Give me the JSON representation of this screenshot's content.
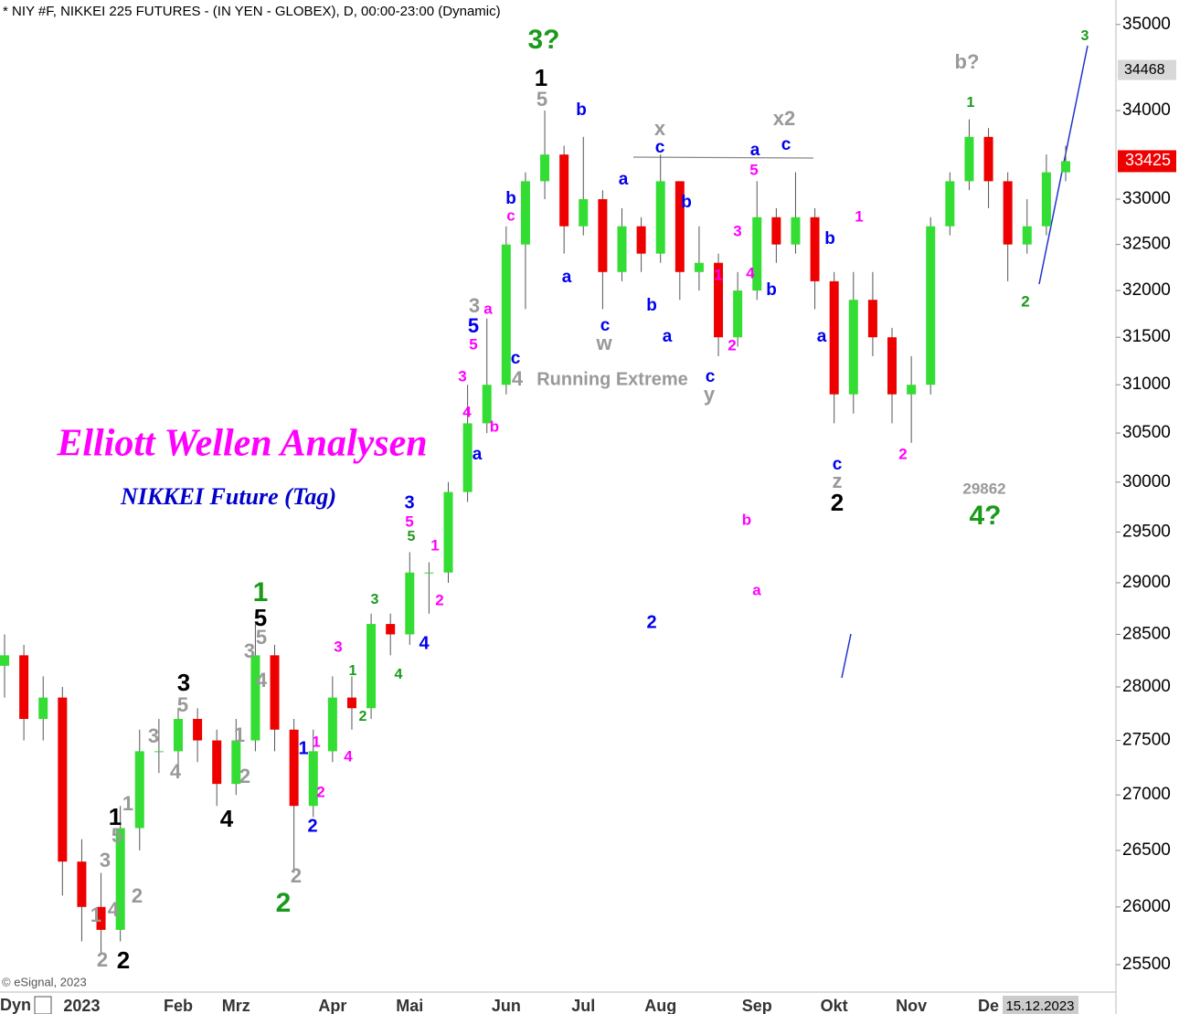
{
  "chart_data": {
    "type": "candlestick",
    "title": "* NIY #F, NIKKEI 225 FUTURES - (IN YEN - GLOBEX), D, 00:00-23:00 (Dynamic)",
    "categories": [
      null,
      null,
      null,
      null,
      "2023",
      null,
      null,
      null,
      null,
      "Feb",
      null,
      null,
      "Mrz",
      null,
      null,
      null,
      null,
      "Apr",
      null,
      null,
      null,
      "Mai",
      null,
      null,
      null,
      null,
      "Jun",
      null,
      null,
      null,
      "Jul",
      null,
      null,
      null,
      "Aug",
      null,
      null,
      null,
      null,
      "Sep",
      null,
      null,
      null,
      "Okt",
      null,
      null,
      null,
      "Nov",
      null,
      null,
      null,
      "De",
      null,
      null,
      null,
      null
    ],
    "open": [
      28200,
      28300,
      27700,
      27900,
      26400,
      26000,
      25800,
      26700,
      27400,
      27400,
      27700,
      27500,
      27100,
      27500,
      28300,
      27600,
      26900,
      27400,
      27900,
      27800,
      28600,
      28500,
      29100,
      29100,
      29900,
      30600,
      31000,
      32500,
      33200,
      33500,
      32700,
      33000,
      32200,
      32700,
      32400,
      33200,
      32200,
      32300,
      31500,
      32000,
      32800,
      32500,
      32800,
      32100,
      30900,
      31900,
      31500,
      30900,
      31000,
      32700,
      33200,
      33700,
      33200,
      32500,
      32700,
      33300
    ],
    "high": [
      28500,
      28400,
      28100,
      28000,
      26600,
      26300,
      26900,
      27600,
      27700,
      27800,
      27800,
      27600,
      27700,
      28600,
      28400,
      27700,
      27600,
      28100,
      28100,
      28700,
      28700,
      29300,
      29200,
      30000,
      31000,
      31700,
      32700,
      33300,
      34000,
      33600,
      33700,
      33100,
      32900,
      32800,
      33500,
      33200,
      32700,
      32400,
      32200,
      33200,
      32900,
      33300,
      32900,
      32200,
      32200,
      32200,
      31600,
      31300,
      32800,
      33300,
      33900,
      33800,
      33300,
      33000,
      33500,
      33600
    ],
    "low": [
      27900,
      27500,
      27500,
      26100,
      25700,
      25600,
      25700,
      26500,
      27200,
      27200,
      27300,
      26900,
      27000,
      27400,
      27400,
      26300,
      26800,
      27300,
      27600,
      27700,
      28300,
      28400,
      28700,
      29000,
      29800,
      30500,
      30900,
      31800,
      33000,
      32400,
      32600,
      31800,
      32100,
      32200,
      32300,
      31900,
      32000,
      31300,
      31400,
      31900,
      32300,
      32400,
      31800,
      30600,
      30700,
      31300,
      30600,
      30400,
      30900,
      32600,
      33100,
      32900,
      32100,
      32400,
      32600,
      33200
    ],
    "close": [
      28300,
      27700,
      27900,
      26400,
      26000,
      25800,
      26700,
      27400,
      27400,
      27700,
      27500,
      27100,
      27500,
      28300,
      27600,
      26900,
      27400,
      27900,
      27800,
      28600,
      28500,
      29100,
      29100,
      29900,
      30600,
      31000,
      32500,
      33200,
      33500,
      32700,
      33000,
      32200,
      32700,
      32400,
      33200,
      32200,
      32300,
      31500,
      32000,
      32800,
      32500,
      32800,
      32100,
      30900,
      31900,
      31500,
      30900,
      31000,
      32700,
      33200,
      33700,
      33200,
      32500,
      32700,
      33300,
      33425
    ],
    "up_color": "#33dd33",
    "down_color": "#ee0000",
    "log_scale": true,
    "ylim": [
      25265,
      35290
    ],
    "yticks": [
      25500,
      26000,
      26500,
      27000,
      27500,
      28000,
      28500,
      29000,
      29500,
      30000,
      30500,
      31000,
      31500,
      32000,
      32500,
      33000,
      34000,
      35000
    ],
    "last_price": 33425,
    "last_price_color": "#ee0000",
    "marker_price": 34468,
    "cursor_date": "15.12.2023",
    "copyright": "© eSignal, 2023",
    "corner_label": "Dyn",
    "annotations": [
      {
        "text": "Elliott Wellen Analysen",
        "color": "#ff00ff"
      },
      {
        "text": "NIKKEI Future (Tag)",
        "color": "#0000cc"
      },
      {
        "text": "Running Extreme",
        "color": "#999999"
      },
      {
        "text": "3?",
        "color": "#1a9a1a"
      },
      {
        "text": "1",
        "color": "#000000"
      },
      {
        "text": "5",
        "color": "#999999"
      },
      {
        "text": "b",
        "color": "#0000ee"
      },
      {
        "text": "x",
        "color": "#999999"
      },
      {
        "text": "c",
        "color": "#0000ee"
      },
      {
        "text": "x2",
        "color": "#999999"
      },
      {
        "text": "a",
        "color": "#0000ee"
      },
      {
        "text": "c",
        "color": "#0000ee"
      },
      {
        "text": "5",
        "color": "#ff00ff"
      },
      {
        "text": "a",
        "color": "#0000ee"
      },
      {
        "text": "b",
        "color": "#0000ee"
      },
      {
        "text": "b",
        "color": "#0000ee"
      },
      {
        "text": "c",
        "color": "#ff00ff"
      },
      {
        "text": "3",
        "color": "#ff00ff"
      },
      {
        "text": "1",
        "color": "#ff00ff"
      },
      {
        "text": "4",
        "color": "#ff00ff"
      },
      {
        "text": "a",
        "color": "#0000ee"
      },
      {
        "text": "b",
        "color": "#0000ee"
      },
      {
        "text": "b",
        "color": "#0000ee"
      },
      {
        "text": "b",
        "color": "#0000ee"
      },
      {
        "text": "1",
        "color": "#ff00ff"
      },
      {
        "text": "c",
        "color": "#0000ee"
      },
      {
        "text": "w",
        "color": "#999999"
      },
      {
        "text": "a",
        "color": "#0000ee"
      },
      {
        "text": "2",
        "color": "#ff00ff"
      },
      {
        "text": "c",
        "color": "#0000ee"
      },
      {
        "text": "y",
        "color": "#999999"
      },
      {
        "text": "a",
        "color": "#0000ee"
      },
      {
        "text": "3",
        "color": "#999999"
      },
      {
        "text": "a",
        "color": "#ff00ff"
      },
      {
        "text": "5",
        "color": "#0000ee"
      },
      {
        "text": "5",
        "color": "#ff00ff"
      },
      {
        "text": "c",
        "color": "#0000ee"
      },
      {
        "text": "4",
        "color": "#999999"
      },
      {
        "text": "3",
        "color": "#ff00ff"
      },
      {
        "text": "4",
        "color": "#ff00ff"
      },
      {
        "text": "b",
        "color": "#ff00ff"
      },
      {
        "text": "a",
        "color": "#0000ee"
      },
      {
        "text": "c",
        "color": "#0000ee"
      },
      {
        "text": "z",
        "color": "#999999"
      },
      {
        "text": "2",
        "color": "#000000"
      },
      {
        "text": "2",
        "color": "#ff00ff"
      },
      {
        "text": "b?",
        "color": "#999999"
      },
      {
        "text": "1",
        "color": "#1a9a1a"
      },
      {
        "text": "3",
        "color": "#1a9a1a"
      },
      {
        "text": "2",
        "color": "#1a9a1a"
      },
      {
        "text": "29862",
        "color": "#999999"
      },
      {
        "text": "4?",
        "color": "#1a9a1a"
      },
      {
        "text": "3",
        "color": "#0000ee"
      },
      {
        "text": "5",
        "color": "#ff00ff"
      },
      {
        "text": "5",
        "color": "#1a9a1a"
      },
      {
        "text": "1",
        "color": "#ff00ff"
      },
      {
        "text": "2",
        "color": "#ff00ff"
      },
      {
        "text": "b",
        "color": "#ff00ff"
      },
      {
        "text": "a",
        "color": "#ff00ff"
      },
      {
        "text": "2",
        "color": "#0000ee"
      },
      {
        "text": "3",
        "color": "#1a9a1a"
      },
      {
        "text": "4",
        "color": "#0000ee"
      },
      {
        "text": "4",
        "color": "#1a9a1a"
      },
      {
        "text": "3",
        "color": "#ff00ff"
      },
      {
        "text": "1",
        "color": "#1a9a1a"
      },
      {
        "text": "2",
        "color": "#1a9a1a"
      },
      {
        "text": "1",
        "color": "#0000ee"
      },
      {
        "text": "1",
        "color": "#ff00ff"
      },
      {
        "text": "4",
        "color": "#ff00ff"
      },
      {
        "text": "2",
        "color": "#ff00ff"
      },
      {
        "text": "2",
        "color": "#0000ee"
      },
      {
        "text": "1",
        "color": "#1a9a1a"
      },
      {
        "text": "5",
        "color": "#000000"
      },
      {
        "text": "5",
        "color": "#999999"
      },
      {
        "text": "3",
        "color": "#999999"
      },
      {
        "text": "4",
        "color": "#999999"
      },
      {
        "text": "3",
        "color": "#000000"
      },
      {
        "text": "5",
        "color": "#999999"
      },
      {
        "text": "3",
        "color": "#999999"
      },
      {
        "text": "4",
        "color": "#999999"
      },
      {
        "text": "1",
        "color": "#999999"
      },
      {
        "text": "2",
        "color": "#999999"
      },
      {
        "text": "4",
        "color": "#000000"
      },
      {
        "text": "2",
        "color": "#999999"
      },
      {
        "text": "2",
        "color": "#1a9a1a"
      },
      {
        "text": "1",
        "color": "#000000"
      },
      {
        "text": "1",
        "color": "#999999"
      },
      {
        "text": "5",
        "color": "#999999"
      },
      {
        "text": "3",
        "color": "#999999"
      },
      {
        "text": "2",
        "color": "#999999"
      },
      {
        "text": "4",
        "color": "#999999"
      },
      {
        "text": "1",
        "color": "#999999"
      },
      {
        "text": "2",
        "color": "#999999"
      },
      {
        "text": "2",
        "color": "#000000"
      }
    ]
  }
}
